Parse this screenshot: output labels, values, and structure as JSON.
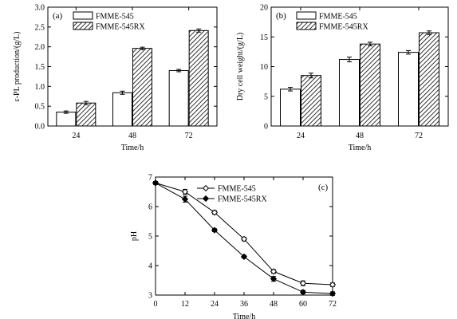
{
  "chart_data": [
    {
      "panel": "(a)",
      "type": "bar",
      "categories": [
        "24",
        "48",
        "72"
      ],
      "series": [
        {
          "name": "FMME-545",
          "values": [
            0.35,
            0.84,
            1.4
          ],
          "errors": [
            0.03,
            0.04,
            0.03
          ],
          "fill": "white"
        },
        {
          "name": "FMME-545RX",
          "values": [
            0.58,
            1.96,
            2.41
          ],
          "errors": [
            0.04,
            0.03,
            0.04
          ],
          "fill": "hatched"
        }
      ],
      "xlabel": "Time/h",
      "ylabel": "ε-PL production/(g/L)",
      "ylim": [
        0,
        3.0
      ],
      "yticks": [
        "0.0",
        "0.5",
        "1.0",
        "1.5",
        "2.0",
        "2.5",
        "3.0"
      ],
      "legend": "top-left"
    },
    {
      "panel": "(b)",
      "type": "bar",
      "categories": [
        "24",
        "48",
        "72"
      ],
      "series": [
        {
          "name": "FMME-545",
          "values": [
            6.2,
            11.2,
            12.4
          ],
          "errors": [
            0.3,
            0.4,
            0.3
          ],
          "fill": "white"
        },
        {
          "name": "FMME-545RX",
          "values": [
            8.5,
            13.8,
            15.7
          ],
          "errors": [
            0.4,
            0.3,
            0.3
          ],
          "fill": "hatched"
        }
      ],
      "xlabel": "Time/h",
      "ylabel": "Dry cell weight/(g/L)",
      "ylim": [
        0,
        20
      ],
      "yticks": [
        "0",
        "5",
        "10",
        "15",
        "20"
      ],
      "legend": "top-left"
    },
    {
      "panel": "(c)",
      "type": "line",
      "x": [
        0,
        12,
        24,
        36,
        48,
        60,
        72
      ],
      "xticks": [
        "0",
        "12",
        "24",
        "36",
        "48",
        "60",
        "72"
      ],
      "series": [
        {
          "name": "FMME-545",
          "marker": "open-diamond",
          "values": [
            6.8,
            6.5,
            5.8,
            4.9,
            3.8,
            3.4,
            3.35
          ],
          "errors": [
            0.05,
            0.08,
            0.06,
            0.06,
            0.06,
            0.08,
            0.06
          ]
        },
        {
          "name": "FMME-545RX",
          "marker": "filled-diamond",
          "values": [
            6.8,
            6.25,
            5.2,
            4.3,
            3.55,
            3.1,
            3.05
          ],
          "errors": [
            0.05,
            0.1,
            0.05,
            0.05,
            0.08,
            0.06,
            0.06
          ]
        }
      ],
      "xlabel": "Time/h",
      "ylabel": "pH",
      "xlim": [
        0,
        72
      ],
      "ylim": [
        3,
        7
      ],
      "yticks": [
        "3",
        "4",
        "5",
        "6",
        "7"
      ],
      "legend": "top-right"
    }
  ]
}
